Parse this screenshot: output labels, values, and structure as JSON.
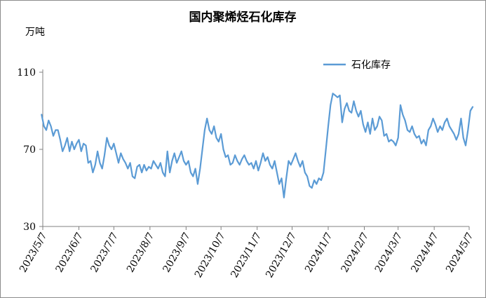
{
  "chart_data": {
    "type": "line",
    "title": "国内聚烯烃石化库存",
    "ylabel": "万吨",
    "ylim": [
      30,
      110
    ],
    "yticks": [
      30,
      70,
      110
    ],
    "legend": {
      "placement": "top-right"
    },
    "grid": false,
    "x_ticks": [
      "2023/5/7",
      "2023/6/7",
      "2023/7/7",
      "2023/8/7",
      "2023/9/7",
      "2023/10/7",
      "2023/11/7",
      "2023/12/7",
      "2024/1/7",
      "2024/2/7",
      "2024/3/7",
      "2024/4/7",
      "2024/5/7"
    ],
    "series": [
      {
        "name": "石化库存",
        "color": "#5b9bd5",
        "points": [
          [
            "2023/5/6",
            88
          ],
          [
            "2023/5/8",
            82
          ],
          [
            "2023/5/10",
            80
          ],
          [
            "2023/5/12",
            85
          ],
          [
            "2023/5/14",
            82
          ],
          [
            "2023/5/16",
            77
          ],
          [
            "2023/5/18",
            80
          ],
          [
            "2023/5/20",
            80
          ],
          [
            "2023/5/22",
            75
          ],
          [
            "2023/5/24",
            69
          ],
          [
            "2023/5/26",
            72
          ],
          [
            "2023/5/28",
            76
          ],
          [
            "2023/5/30",
            69
          ],
          [
            "2023/6/1",
            74
          ],
          [
            "2023/6/3",
            70
          ],
          [
            "2023/6/5",
            73
          ],
          [
            "2023/6/7",
            75
          ],
          [
            "2023/6/9",
            69
          ],
          [
            "2023/6/11",
            73
          ],
          [
            "2023/6/13",
            72
          ],
          [
            "2023/6/15",
            63
          ],
          [
            "2023/6/17",
            64
          ],
          [
            "2023/6/19",
            58
          ],
          [
            "2023/6/21",
            62
          ],
          [
            "2023/6/23",
            69
          ],
          [
            "2023/6/25",
            63
          ],
          [
            "2023/6/27",
            60
          ],
          [
            "2023/6/29",
            67
          ],
          [
            "2023/7/1",
            76
          ],
          [
            "2023/7/3",
            72
          ],
          [
            "2023/7/5",
            70
          ],
          [
            "2023/7/7",
            73
          ],
          [
            "2023/7/9",
            68
          ],
          [
            "2023/7/11",
            63
          ],
          [
            "2023/7/13",
            68
          ],
          [
            "2023/7/15",
            65
          ],
          [
            "2023/7/17",
            63
          ],
          [
            "2023/7/19",
            60
          ],
          [
            "2023/7/21",
            63
          ],
          [
            "2023/7/23",
            56
          ],
          [
            "2023/7/25",
            55
          ],
          [
            "2023/7/27",
            61
          ],
          [
            "2023/7/29",
            62
          ],
          [
            "2023/7/31",
            58
          ],
          [
            "2023/8/2",
            62
          ],
          [
            "2023/8/4",
            59
          ],
          [
            "2023/8/6",
            61
          ],
          [
            "2023/8/8",
            60
          ],
          [
            "2023/8/10",
            64
          ],
          [
            "2023/8/12",
            62
          ],
          [
            "2023/8/14",
            60
          ],
          [
            "2023/8/16",
            63
          ],
          [
            "2023/8/18",
            58
          ],
          [
            "2023/8/20",
            56
          ],
          [
            "2023/8/22",
            69
          ],
          [
            "2023/8/24",
            58
          ],
          [
            "2023/8/26",
            64
          ],
          [
            "2023/8/28",
            68
          ],
          [
            "2023/8/30",
            63
          ],
          [
            "2023/9/1",
            66
          ],
          [
            "2023/9/3",
            69
          ],
          [
            "2023/9/5",
            64
          ],
          [
            "2023/9/7",
            62
          ],
          [
            "2023/9/9",
            64
          ],
          [
            "2023/9/11",
            58
          ],
          [
            "2023/9/13",
            56
          ],
          [
            "2023/9/15",
            60
          ],
          [
            "2023/9/17",
            52
          ],
          [
            "2023/9/19",
            60
          ],
          [
            "2023/9/21",
            70
          ],
          [
            "2023/9/23",
            80
          ],
          [
            "2023/9/25",
            86
          ],
          [
            "2023/9/27",
            80
          ],
          [
            "2023/9/29",
            78
          ],
          [
            "2023/10/1",
            82
          ],
          [
            "2023/10/3",
            76
          ],
          [
            "2023/10/5",
            74
          ],
          [
            "2023/10/7",
            78
          ],
          [
            "2023/10/9",
            70
          ],
          [
            "2023/10/11",
            66
          ],
          [
            "2023/10/13",
            67
          ],
          [
            "2023/10/15",
            62
          ],
          [
            "2023/10/17",
            63
          ],
          [
            "2023/10/19",
            67
          ],
          [
            "2023/10/21",
            64
          ],
          [
            "2023/10/23",
            62
          ],
          [
            "2023/10/25",
            65
          ],
          [
            "2023/10/27",
            67
          ],
          [
            "2023/10/29",
            64
          ],
          [
            "2023/10/31",
            62
          ],
          [
            "2023/11/2",
            63
          ],
          [
            "2023/11/4",
            60
          ],
          [
            "2023/11/6",
            64
          ],
          [
            "2023/11/8",
            59
          ],
          [
            "2023/11/10",
            63
          ],
          [
            "2023/11/12",
            68
          ],
          [
            "2023/11/14",
            64
          ],
          [
            "2023/11/16",
            66
          ],
          [
            "2023/11/18",
            62
          ],
          [
            "2023/11/20",
            60
          ],
          [
            "2023/11/22",
            64
          ],
          [
            "2023/11/24",
            58
          ],
          [
            "2023/11/26",
            52
          ],
          [
            "2023/11/28",
            55
          ],
          [
            "2023/11/30",
            45
          ],
          [
            "2023/12/2",
            55
          ],
          [
            "2023/12/4",
            64
          ],
          [
            "2023/12/6",
            62
          ],
          [
            "2023/12/8",
            65
          ],
          [
            "2023/12/10",
            68
          ],
          [
            "2023/12/12",
            64
          ],
          [
            "2023/12/14",
            61
          ],
          [
            "2023/12/16",
            64
          ],
          [
            "2023/12/18",
            58
          ],
          [
            "2023/12/20",
            56
          ],
          [
            "2023/12/22",
            51
          ],
          [
            "2023/12/24",
            50
          ],
          [
            "2023/12/26",
            54
          ],
          [
            "2023/12/28",
            52
          ],
          [
            "2023/12/30",
            55
          ],
          [
            "2024/1/1",
            54
          ],
          [
            "2024/1/3",
            58
          ],
          [
            "2024/1/5",
            70
          ],
          [
            "2024/1/7",
            82
          ],
          [
            "2024/1/9",
            93
          ],
          [
            "2024/1/11",
            99
          ],
          [
            "2024/1/13",
            98
          ],
          [
            "2024/1/15",
            97
          ],
          [
            "2024/1/17",
            98
          ],
          [
            "2024/1/19",
            84
          ],
          [
            "2024/1/21",
            91
          ],
          [
            "2024/1/23",
            94
          ],
          [
            "2024/1/25",
            90
          ],
          [
            "2024/1/27",
            89
          ],
          [
            "2024/1/29",
            95
          ],
          [
            "2024/1/31",
            90
          ],
          [
            "2024/2/2",
            87
          ],
          [
            "2024/2/4",
            90
          ],
          [
            "2024/2/6",
            83
          ],
          [
            "2024/2/8",
            79
          ],
          [
            "2024/2/10",
            84
          ],
          [
            "2024/2/12",
            78
          ],
          [
            "2024/2/14",
            86
          ],
          [
            "2024/2/16",
            80
          ],
          [
            "2024/2/18",
            82
          ],
          [
            "2024/2/20",
            87
          ],
          [
            "2024/2/22",
            85
          ],
          [
            "2024/2/24",
            77
          ],
          [
            "2024/2/26",
            78
          ],
          [
            "2024/2/28",
            74
          ],
          [
            "2024/3/1",
            75
          ],
          [
            "2024/3/3",
            74
          ],
          [
            "2024/3/5",
            72
          ],
          [
            "2024/3/7",
            76
          ],
          [
            "2024/3/9",
            93
          ],
          [
            "2024/3/11",
            88
          ],
          [
            "2024/3/13",
            85
          ],
          [
            "2024/3/15",
            80
          ],
          [
            "2024/3/17",
            79
          ],
          [
            "2024/3/19",
            82
          ],
          [
            "2024/3/21",
            78
          ],
          [
            "2024/3/23",
            76
          ],
          [
            "2024/3/25",
            77
          ],
          [
            "2024/3/27",
            73
          ],
          [
            "2024/3/29",
            75
          ],
          [
            "2024/3/31",
            72
          ],
          [
            "2024/4/2",
            80
          ],
          [
            "2024/4/4",
            82
          ],
          [
            "2024/4/6",
            86
          ],
          [
            "2024/4/8",
            83
          ],
          [
            "2024/4/10",
            79
          ],
          [
            "2024/4/12",
            82
          ],
          [
            "2024/4/14",
            80
          ],
          [
            "2024/4/16",
            84
          ],
          [
            "2024/4/18",
            86
          ],
          [
            "2024/4/20",
            82
          ],
          [
            "2024/4/22",
            80
          ],
          [
            "2024/4/24",
            78
          ],
          [
            "2024/4/26",
            75
          ],
          [
            "2024/4/28",
            78
          ],
          [
            "2024/4/30",
            86
          ],
          [
            "2024/5/2",
            76
          ],
          [
            "2024/5/4",
            72
          ],
          [
            "2024/5/6",
            80
          ],
          [
            "2024/5/8",
            90
          ],
          [
            "2024/5/10",
            92
          ]
        ]
      }
    ]
  }
}
